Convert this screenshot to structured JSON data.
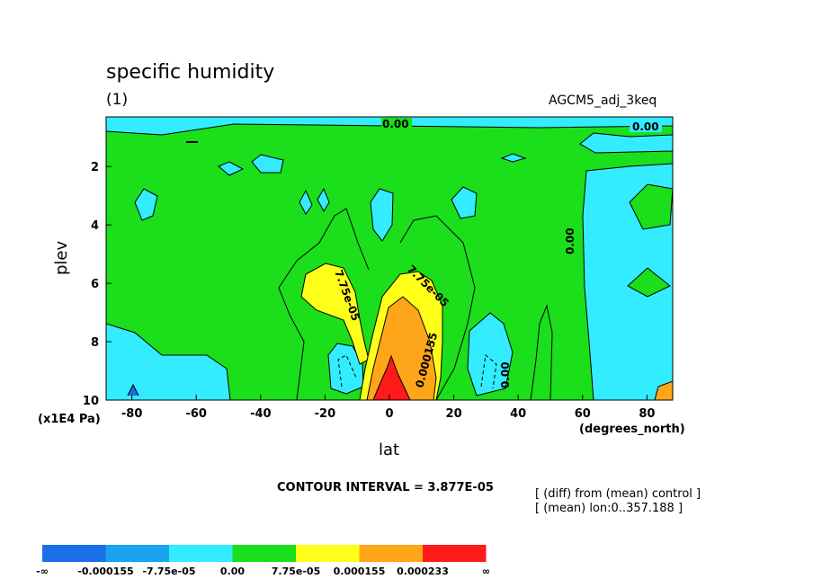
{
  "title": "specific humidity",
  "subtitle": "(1)",
  "case_name": "AGCM5_adj_3keq",
  "contour_interval": "CONTOUR INTERVAL = 3.877E-05",
  "notes": [
    "[ (diff) from (mean) control ]",
    "[ (mean) lon:0..357.188 ]"
  ],
  "chart_data": {
    "type": "heatmap",
    "title": "specific humidity",
    "xlabel": "lat",
    "ylabel": "plev",
    "x_unit_label": "(degrees_north)",
    "y_unit_label": "(x1E4 Pa)",
    "xlim": [
      -88,
      88
    ],
    "ylim": [
      10,
      0.3
    ],
    "x_ticks": [
      -80,
      -60,
      -40,
      -20,
      0,
      20,
      40,
      60,
      80
    ],
    "x_tick_labels": [
      "-80",
      "-60",
      "-40",
      "-20",
      "0",
      "20",
      "40",
      "60",
      "80"
    ],
    "y_ticks": [
      2,
      4,
      6,
      8,
      10
    ],
    "y_tick_labels": [
      "2",
      "4",
      "6",
      "8",
      "10"
    ],
    "contour_labels": [
      "0.00",
      "0.00",
      "0.00",
      "0.00",
      "7.75e-05",
      "7.75e-05",
      "0.000155"
    ],
    "colorbar": {
      "levels": [
        "-∞",
        "-0.000155",
        "-7.75e-05",
        "0.00",
        "7.75e-05",
        "0.000155",
        "0.000233",
        "∞"
      ],
      "colors": [
        "#1a6fe6",
        "#1aa3f0",
        "#33ecff",
        "#1adf1a",
        "#ffff1a",
        "#ffa51a",
        "#ff1a1a"
      ]
    }
  }
}
